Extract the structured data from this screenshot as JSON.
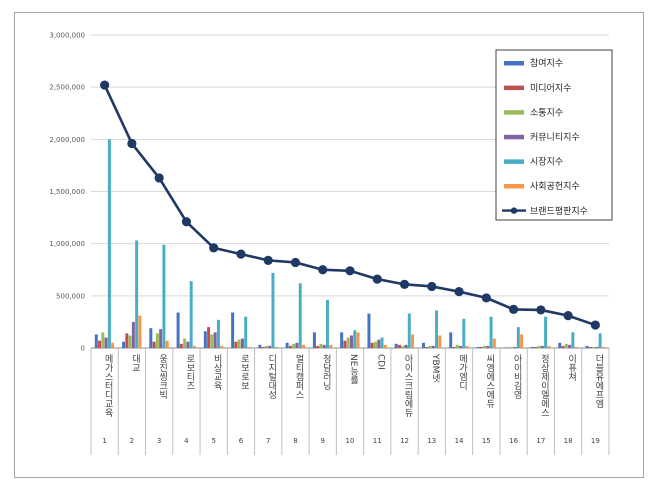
{
  "chart_data": {
    "type": "bar",
    "title": "",
    "xlabel": "",
    "ylabel": "",
    "ylim": [
      0,
      3000000
    ],
    "yticks": [
      0,
      500000,
      1000000,
      1500000,
      2000000,
      2500000,
      3000000
    ],
    "ytick_labels": [
      "0",
      "500,000",
      "1,000,000",
      "1,500,000",
      "2,000,000",
      "2,500,000",
      "3,000,000"
    ],
    "grid": true,
    "legend_position": "top-right",
    "categories": [
      "메가스터디교육",
      "대교",
      "웅진씽크빅",
      "로보티즈",
      "비상교육",
      "로보로보",
      "디지털대성",
      "멀티캠퍼스",
      "청담러닝",
      "NE능률",
      "CDI",
      "아이스크림에듀",
      "YBM넷",
      "메가엠디",
      "씨엠에스에듀",
      "아이비김영",
      "정상제이엘에스",
      "이퓨쳐",
      "더블유에프엠"
    ],
    "category_numbers": [
      "1",
      "2",
      "3",
      "4",
      "5",
      "6",
      "7",
      "8",
      "9",
      "10",
      "11",
      "12",
      "13",
      "14",
      "15",
      "16",
      "17",
      "18",
      "19"
    ],
    "series": [
      {
        "name": "참여지수",
        "kind": "bar",
        "color": "#4472c4",
        "values": [
          130000,
          60000,
          190000,
          340000,
          160000,
          340000,
          30000,
          50000,
          150000,
          150000,
          330000,
          40000,
          50000,
          150000,
          10000,
          5000,
          10000,
          50000,
          20000
        ]
      },
      {
        "name": "미디어지수",
        "kind": "bar",
        "color": "#c0504d",
        "values": [
          70000,
          140000,
          60000,
          40000,
          200000,
          60000,
          10000,
          20000,
          20000,
          70000,
          50000,
          30000,
          10000,
          10000,
          10000,
          5000,
          10000,
          20000,
          10000
        ]
      },
      {
        "name": "소통지수",
        "kind": "bar",
        "color": "#9bbb59",
        "values": [
          150000,
          120000,
          140000,
          90000,
          130000,
          80000,
          20000,
          40000,
          40000,
          100000,
          60000,
          20000,
          20000,
          30000,
          20000,
          10000,
          20000,
          40000,
          10000
        ]
      },
      {
        "name": "커뮤니티지수",
        "kind": "bar",
        "color": "#8064a2",
        "values": [
          100000,
          250000,
          180000,
          60000,
          150000,
          90000,
          20000,
          50000,
          30000,
          120000,
          80000,
          30000,
          20000,
          20000,
          20000,
          10000,
          20000,
          30000,
          10000
        ]
      },
      {
        "name": "시장지수",
        "kind": "bar",
        "color": "#4bacc6",
        "values": [
          2000000,
          1030000,
          990000,
          640000,
          270000,
          300000,
          720000,
          620000,
          460000,
          170000,
          100000,
          330000,
          360000,
          280000,
          300000,
          200000,
          300000,
          150000,
          140000
        ]
      },
      {
        "name": "사회공헌지수",
        "kind": "bar",
        "color": "#f79646",
        "values": [
          50000,
          310000,
          70000,
          20000,
          20000,
          10000,
          10000,
          30000,
          30000,
          150000,
          30000,
          130000,
          120000,
          20000,
          90000,
          130000,
          20000,
          10000,
          10000
        ]
      },
      {
        "name": "브랜드평판지수",
        "kind": "line",
        "color": "#1f3864",
        "values": [
          2520000,
          1960000,
          1630000,
          1210000,
          960000,
          900000,
          840000,
          820000,
          750000,
          740000,
          660000,
          610000,
          590000,
          540000,
          480000,
          370000,
          365000,
          310000,
          220000
        ]
      }
    ]
  }
}
